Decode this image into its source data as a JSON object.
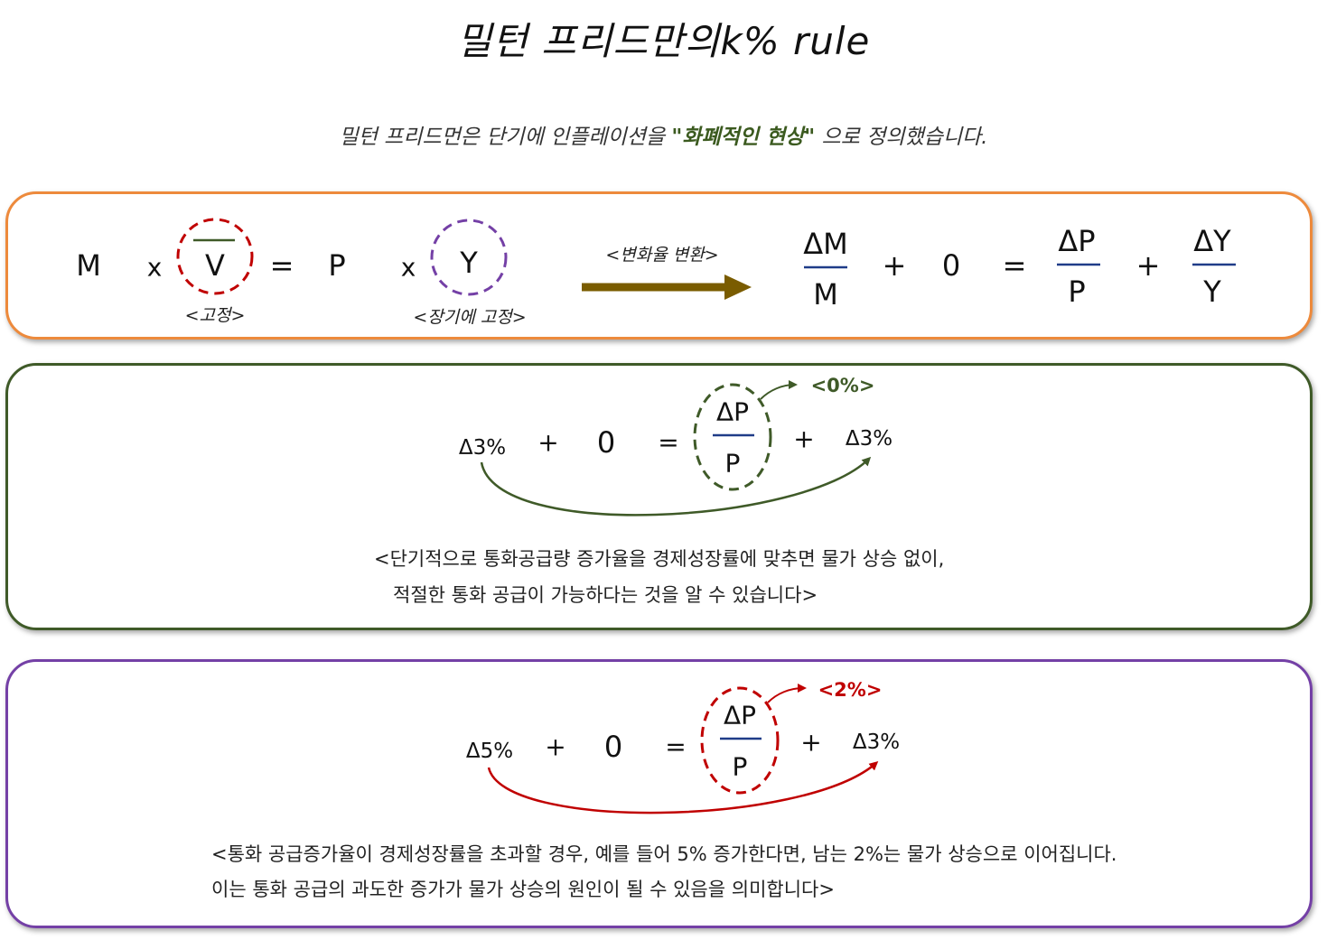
{
  "title": "밀턴 프리드만의k% rule",
  "subtitle": {
    "prefix": "밀턴 프리드먼은 단기에 인플레이션을 ",
    "highlight": "\"화폐적인 현상\"",
    "suffix": " 으로 정의했습니다."
  },
  "panel1": {
    "m": "M",
    "times1": "x",
    "v": "V",
    "eq": "=",
    "p": "P",
    "times2": "x",
    "y": "Y",
    "fixed_label": "<고정>",
    "long_run_fixed_label": "<장기에 고정>",
    "transform_label": "<변화율 변환>",
    "dm": "ΔM",
    "m_den": "M",
    "plus1": "+",
    "zero": "0",
    "eq2": "=",
    "dp": "ΔP",
    "p_den": "P",
    "plus2": "+",
    "dy": "ΔY",
    "y_den": "Y"
  },
  "panel2": {
    "lhs": "Δ3%",
    "plus1": "+",
    "zero": "0",
    "eq": "=",
    "dp": "ΔP",
    "p_den": "P",
    "plus2": "+",
    "rhs": "Δ3%",
    "result": "<0%>",
    "note_line1": "<단기적으로 통화공급량 증가율을 경제성장률에 맞추면 물가 상승 없이,",
    "note_line2": "적절한 통화 공급이 가능하다는 것을 알 수 있습니다>"
  },
  "panel3": {
    "lhs": "Δ5%",
    "plus1": "+",
    "zero": "0",
    "eq": "=",
    "dp": "ΔP",
    "p_den": "P",
    "plus2": "+",
    "rhs": "Δ3%",
    "result": "<2%>",
    "note_line1": "<통화 공급증가율이 경제성장률을 초과할 경우, 예를 들어 5% 증가한다면, 남는 2%는 물가 상승으로 이어집니다.",
    "note_line2": "이는 통화 공급의 과도한 증가가 물가 상승의 원인이 될 수 있음을 의미합니다>"
  },
  "colors": {
    "orange": "#ed8a3c",
    "green": "#3f5a28",
    "purple": "#7440a6",
    "red": "#c00000",
    "navy": "#1f3c88",
    "arrow": "#7a5c00"
  }
}
